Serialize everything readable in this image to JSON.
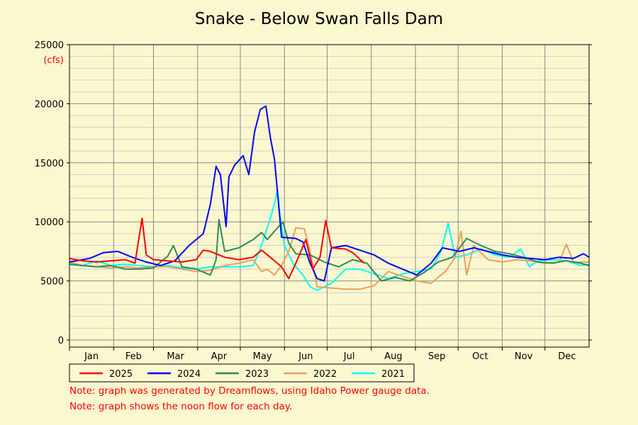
{
  "chart_data": {
    "type": "line",
    "title": "Snake - Below Swan Falls Dam",
    "unit_label": "(cfs)",
    "y_ticks": [
      0,
      5000,
      10000,
      15000,
      20000,
      25000
    ],
    "ylim": [
      0,
      25000
    ],
    "months": [
      "Jan",
      "Feb",
      "Mar",
      "Apr",
      "May",
      "Jun",
      "Jul",
      "Aug",
      "Sep",
      "Oct",
      "Nov",
      "Dec"
    ],
    "x_unit": "day_of_year",
    "xlim": [
      1,
      366
    ],
    "grid": true,
    "legend_placement": "bottom",
    "series": [
      {
        "name": "2025",
        "color": "#ff0000",
        "points": [
          [
            1,
            6900
          ],
          [
            10,
            6700
          ],
          [
            20,
            6600
          ],
          [
            30,
            6700
          ],
          [
            40,
            6800
          ],
          [
            47,
            6500
          ],
          [
            52,
            10300
          ],
          [
            55,
            7200
          ],
          [
            60,
            6800
          ],
          [
            70,
            6700
          ],
          [
            80,
            6600
          ],
          [
            90,
            6800
          ],
          [
            95,
            7600
          ],
          [
            100,
            7500
          ],
          [
            110,
            7000
          ],
          [
            120,
            6800
          ],
          [
            130,
            7000
          ],
          [
            136,
            7600
          ],
          [
            142,
            7000
          ],
          [
            150,
            6200
          ],
          [
            155,
            5200
          ],
          [
            160,
            6500
          ],
          [
            167,
            8500
          ],
          [
            172,
            6000
          ],
          [
            177,
            7000
          ],
          [
            181,
            10100
          ],
          [
            185,
            7800
          ],
          [
            195,
            7700
          ],
          [
            200,
            7400
          ],
          [
            208,
            6500
          ]
        ]
      },
      {
        "name": "2024",
        "color": "#0000ff",
        "points": [
          [
            1,
            6600
          ],
          [
            15,
            6900
          ],
          [
            25,
            7400
          ],
          [
            35,
            7500
          ],
          [
            45,
            7000
          ],
          [
            55,
            6600
          ],
          [
            65,
            6300
          ],
          [
            75,
            6700
          ],
          [
            85,
            8000
          ],
          [
            95,
            9000
          ],
          [
            100,
            11500
          ],
          [
            104,
            14700
          ],
          [
            107,
            14000
          ],
          [
            111,
            9600
          ],
          [
            113,
            13800
          ],
          [
            117,
            14800
          ],
          [
            123,
            15600
          ],
          [
            127,
            14000
          ],
          [
            131,
            17600
          ],
          [
            135,
            19500
          ],
          [
            139,
            19800
          ],
          [
            142,
            17200
          ],
          [
            145,
            15300
          ],
          [
            150,
            8700
          ],
          [
            160,
            8600
          ],
          [
            165,
            8300
          ],
          [
            170,
            6500
          ],
          [
            175,
            5200
          ],
          [
            180,
            5000
          ],
          [
            185,
            7800
          ],
          [
            195,
            8000
          ],
          [
            205,
            7600
          ],
          [
            215,
            7200
          ],
          [
            225,
            6500
          ],
          [
            235,
            6000
          ],
          [
            245,
            5500
          ],
          [
            255,
            6500
          ],
          [
            263,
            7800
          ],
          [
            275,
            7500
          ],
          [
            285,
            7800
          ],
          [
            295,
            7500
          ],
          [
            305,
            7200
          ],
          [
            315,
            7000
          ],
          [
            325,
            6900
          ],
          [
            335,
            6800
          ],
          [
            345,
            7000
          ],
          [
            355,
            6900
          ],
          [
            362,
            7300
          ],
          [
            366,
            7000
          ]
        ]
      },
      {
        "name": "2023",
        "color": "#2e8b57",
        "points": [
          [
            1,
            6400
          ],
          [
            10,
            6300
          ],
          [
            20,
            6200
          ],
          [
            30,
            6300
          ],
          [
            40,
            6000
          ],
          [
            50,
            6000
          ],
          [
            60,
            6100
          ],
          [
            70,
            7100
          ],
          [
            74,
            8000
          ],
          [
            80,
            6200
          ],
          [
            90,
            6000
          ],
          [
            100,
            5500
          ],
          [
            104,
            6800
          ],
          [
            106,
            10200
          ],
          [
            110,
            7500
          ],
          [
            120,
            7800
          ],
          [
            130,
            8500
          ],
          [
            136,
            9100
          ],
          [
            140,
            8500
          ],
          [
            145,
            9200
          ],
          [
            151,
            10000
          ],
          [
            155,
            8200
          ],
          [
            160,
            7300
          ],
          [
            170,
            7200
          ],
          [
            180,
            6600
          ],
          [
            190,
            6200
          ],
          [
            200,
            6800
          ],
          [
            210,
            6500
          ],
          [
            220,
            5000
          ],
          [
            230,
            5300
          ],
          [
            240,
            5000
          ],
          [
            250,
            5700
          ],
          [
            260,
            6600
          ],
          [
            270,
            7000
          ],
          [
            275,
            7800
          ],
          [
            280,
            8600
          ],
          [
            290,
            8000
          ],
          [
            300,
            7500
          ],
          [
            310,
            7300
          ],
          [
            320,
            7000
          ],
          [
            330,
            6600
          ],
          [
            340,
            6500
          ],
          [
            350,
            6700
          ],
          [
            360,
            6500
          ],
          [
            366,
            6300
          ]
        ]
      },
      {
        "name": "2022",
        "color": "#e8a060",
        "points": [
          [
            1,
            6600
          ],
          [
            10,
            6300
          ],
          [
            20,
            6200
          ],
          [
            30,
            6100
          ],
          [
            40,
            6200
          ],
          [
            50,
            6100
          ],
          [
            60,
            6200
          ],
          [
            70,
            6200
          ],
          [
            80,
            6000
          ],
          [
            90,
            5800
          ],
          [
            100,
            5900
          ],
          [
            110,
            6300
          ],
          [
            120,
            6500
          ],
          [
            130,
            6800
          ],
          [
            136,
            5800
          ],
          [
            140,
            6000
          ],
          [
            145,
            5500
          ],
          [
            150,
            6300
          ],
          [
            155,
            7500
          ],
          [
            160,
            9500
          ],
          [
            166,
            9400
          ],
          [
            170,
            7500
          ],
          [
            175,
            4500
          ],
          [
            185,
            4400
          ],
          [
            195,
            4300
          ],
          [
            205,
            4300
          ],
          [
            215,
            4600
          ],
          [
            225,
            5800
          ],
          [
            235,
            5400
          ],
          [
            245,
            5000
          ],
          [
            255,
            4800
          ],
          [
            265,
            5800
          ],
          [
            272,
            7000
          ],
          [
            276,
            9200
          ],
          [
            280,
            5500
          ],
          [
            285,
            8000
          ],
          [
            295,
            6800
          ],
          [
            305,
            6600
          ],
          [
            315,
            6800
          ],
          [
            325,
            6700
          ],
          [
            335,
            6500
          ],
          [
            345,
            6600
          ],
          [
            350,
            8100
          ],
          [
            355,
            6600
          ],
          [
            366,
            6600
          ]
        ]
      },
      {
        "name": "2021",
        "color": "#00ffff",
        "points": [
          [
            1,
            6500
          ],
          [
            10,
            6300
          ],
          [
            20,
            6700
          ],
          [
            30,
            6300
          ],
          [
            40,
            6400
          ],
          [
            50,
            6300
          ],
          [
            60,
            6200
          ],
          [
            70,
            6300
          ],
          [
            80,
            6100
          ],
          [
            90,
            6000
          ],
          [
            100,
            6200
          ],
          [
            110,
            6200
          ],
          [
            120,
            6200
          ],
          [
            130,
            6300
          ],
          [
            135,
            7700
          ],
          [
            140,
            9500
          ],
          [
            145,
            11500
          ],
          [
            147,
            12700
          ],
          [
            149,
            10500
          ],
          [
            152,
            8000
          ],
          [
            158,
            6500
          ],
          [
            165,
            5500
          ],
          [
            170,
            4500
          ],
          [
            175,
            4200
          ],
          [
            185,
            4800
          ],
          [
            195,
            6000
          ],
          [
            205,
            6000
          ],
          [
            215,
            5600
          ],
          [
            225,
            5200
          ],
          [
            235,
            5600
          ],
          [
            245,
            5800
          ],
          [
            255,
            6000
          ],
          [
            262,
            7500
          ],
          [
            267,
            9900
          ],
          [
            272,
            7000
          ],
          [
            280,
            7200
          ],
          [
            290,
            7700
          ],
          [
            300,
            7200
          ],
          [
            310,
            7000
          ],
          [
            318,
            7700
          ],
          [
            324,
            6200
          ],
          [
            330,
            6700
          ],
          [
            340,
            6800
          ],
          [
            350,
            6700
          ],
          [
            360,
            6300
          ],
          [
            366,
            6400
          ]
        ]
      }
    ]
  },
  "notes": [
    "Note: graph was generated by Dreamflows, using Idaho Power gauge data.",
    "Note: graph shows the noon flow for each day."
  ]
}
